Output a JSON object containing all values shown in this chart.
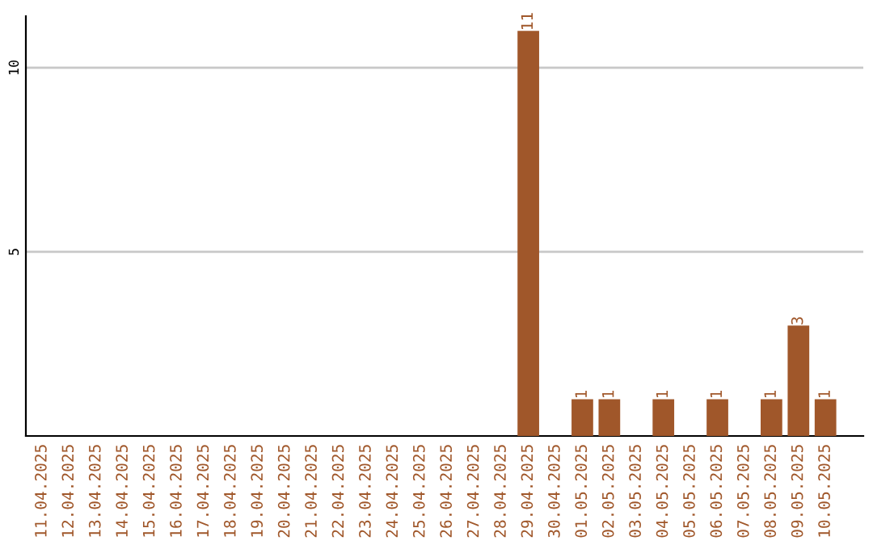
{
  "chart_data": {
    "type": "bar",
    "categories": [
      "11.04.2025",
      "12.04.2025",
      "13.04.2025",
      "14.04.2025",
      "15.04.2025",
      "16.04.2025",
      "17.04.2025",
      "18.04.2025",
      "19.04.2025",
      "20.04.2025",
      "21.04.2025",
      "22.04.2025",
      "23.04.2025",
      "24.04.2025",
      "25.04.2025",
      "26.04.2025",
      "27.04.2025",
      "28.04.2025",
      "29.04.2025",
      "30.04.2025",
      "01.05.2025",
      "02.05.2025",
      "03.05.2025",
      "04.05.2025",
      "05.05.2025",
      "06.05.2025",
      "07.05.2025",
      "08.05.2025",
      "09.05.2025",
      "10.05.2025"
    ],
    "values": [
      0,
      0,
      0,
      0,
      0,
      0,
      0,
      0,
      0,
      0,
      0,
      0,
      0,
      0,
      0,
      0,
      0,
      0,
      11,
      0,
      1,
      1,
      0,
      1,
      0,
      1,
      0,
      1,
      3,
      1
    ],
    "value_labels": [
      null,
      null,
      null,
      null,
      null,
      null,
      null,
      null,
      null,
      null,
      null,
      null,
      null,
      null,
      null,
      null,
      null,
      null,
      "11",
      null,
      "1",
      "1",
      null,
      "1",
      null,
      "1",
      null,
      "1",
      "3",
      "1"
    ],
    "color": "#a0572a",
    "ylim": [
      0,
      11.4
    ],
    "yticks": [
      5,
      10
    ],
    "grid": "y",
    "legend": false
  }
}
